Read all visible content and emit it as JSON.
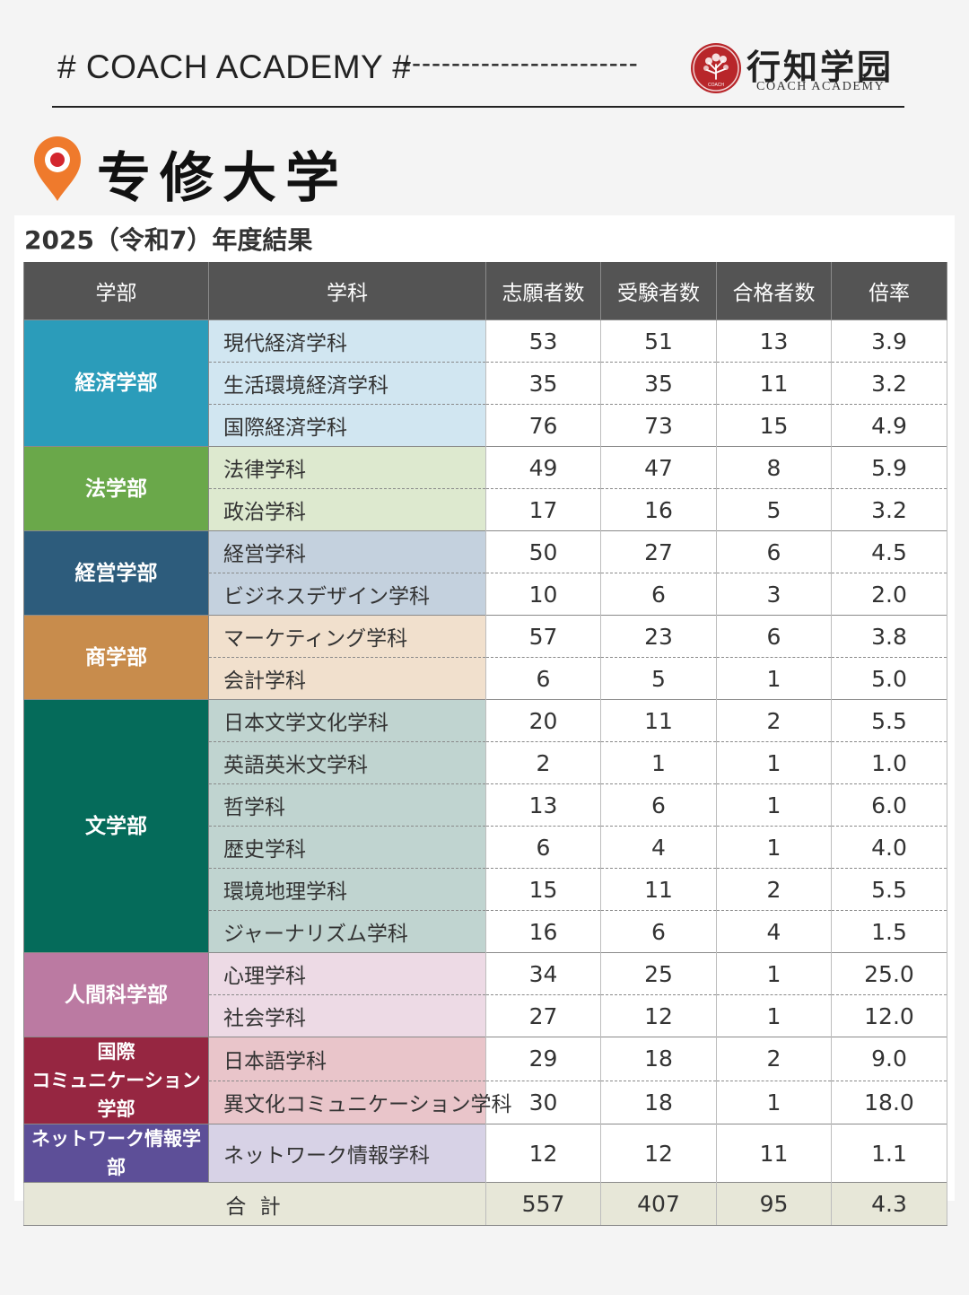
{
  "header": {
    "text": "# COACH ACADEMY #",
    "dashes": "------------------------",
    "logo_main": "行知学园",
    "logo_sub": "COACH ACADEMY",
    "logo_small": "COACH"
  },
  "title": "专修大学",
  "subtitle": "2025（令和7）年度結果",
  "table": {
    "headers": {
      "faculty": "学部",
      "department": "学科",
      "applicants": "志願者数",
      "examinees": "受験者数",
      "passed": "合格者数",
      "ratio": "倍率"
    },
    "groups": [
      {
        "faculty": "経済学部",
        "color": "#2b9cba",
        "tint": "#d1e6f1",
        "rows": [
          {
            "dept": "現代経済学科",
            "applicants": "53",
            "examinees": "51",
            "passed": "13",
            "ratio": "3.9"
          },
          {
            "dept": "生活環境経済学科",
            "applicants": "35",
            "examinees": "35",
            "passed": "11",
            "ratio": "3.2"
          },
          {
            "dept": "国際経済学科",
            "applicants": "76",
            "examinees": "73",
            "passed": "15",
            "ratio": "4.9"
          }
        ]
      },
      {
        "faculty": "法学部",
        "color": "#6aa84a",
        "tint": "#dde9cf",
        "rows": [
          {
            "dept": "法律学科",
            "applicants": "49",
            "examinees": "47",
            "passed": "8",
            "ratio": "5.9"
          },
          {
            "dept": "政治学科",
            "applicants": "17",
            "examinees": "16",
            "passed": "5",
            "ratio": "3.2"
          }
        ]
      },
      {
        "faculty": "経営学部",
        "color": "#2d5c7c",
        "tint": "#c4d1de",
        "rows": [
          {
            "dept": "経営学科",
            "applicants": "50",
            "examinees": "27",
            "passed": "6",
            "ratio": "4.5"
          },
          {
            "dept": "ビジネスデザイン学科",
            "applicants": "10",
            "examinees": "6",
            "passed": "3",
            "ratio": "2.0"
          }
        ]
      },
      {
        "faculty": "商学部",
        "color": "#c88c4c",
        "tint": "#f1e0cd",
        "rows": [
          {
            "dept": "マーケティング学科",
            "applicants": "57",
            "examinees": "23",
            "passed": "6",
            "ratio": "3.8"
          },
          {
            "dept": "会計学科",
            "applicants": "6",
            "examinees": "5",
            "passed": "1",
            "ratio": "5.0"
          }
        ]
      },
      {
        "faculty": "文学部",
        "color": "#056b5a",
        "tint": "#c0d4d0",
        "rows": [
          {
            "dept": "日本文学文化学科",
            "applicants": "20",
            "examinees": "11",
            "passed": "2",
            "ratio": "5.5"
          },
          {
            "dept": "英語英米文学科",
            "applicants": "2",
            "examinees": "1",
            "passed": "1",
            "ratio": "1.0"
          },
          {
            "dept": "哲学科",
            "applicants": "13",
            "examinees": "6",
            "passed": "1",
            "ratio": "6.0"
          },
          {
            "dept": "歴史学科",
            "applicants": "6",
            "examinees": "4",
            "passed": "1",
            "ratio": "4.0"
          },
          {
            "dept": "環境地理学科",
            "applicants": "15",
            "examinees": "11",
            "passed": "2",
            "ratio": "5.5"
          },
          {
            "dept": "ジャーナリズム学科",
            "applicants": "16",
            "examinees": "6",
            "passed": "4",
            "ratio": "1.5"
          }
        ]
      },
      {
        "faculty": "人間科学部",
        "color": "#bb7aa2",
        "tint": "#eddae5",
        "rows": [
          {
            "dept": "心理学科",
            "applicants": "34",
            "examinees": "25",
            "passed": "1",
            "ratio": "25.0"
          },
          {
            "dept": "社会学科",
            "applicants": "27",
            "examinees": "12",
            "passed": "1",
            "ratio": "12.0"
          }
        ]
      },
      {
        "faculty": "国際\nコミュニケーション学部",
        "color": "#962641",
        "tint": "#e9c5ca",
        "rows": [
          {
            "dept": "日本語学科",
            "applicants": "29",
            "examinees": "18",
            "passed": "2",
            "ratio": "9.0"
          },
          {
            "dept": "異文化コミュニケーション学科",
            "applicants": "30",
            "examinees": "18",
            "passed": "1",
            "ratio": "18.0"
          }
        ]
      },
      {
        "faculty": "ネットワーク情報学部",
        "color": "#5d4f98",
        "tint": "#d7d2e6",
        "rows": [
          {
            "dept": "ネットワーク情報学科",
            "applicants": "12",
            "examinees": "12",
            "passed": "11",
            "ratio": "1.1"
          }
        ]
      }
    ],
    "total": {
      "label": "合 計",
      "applicants": "557",
      "examinees": "407",
      "passed": "95",
      "ratio": "4.3"
    }
  }
}
